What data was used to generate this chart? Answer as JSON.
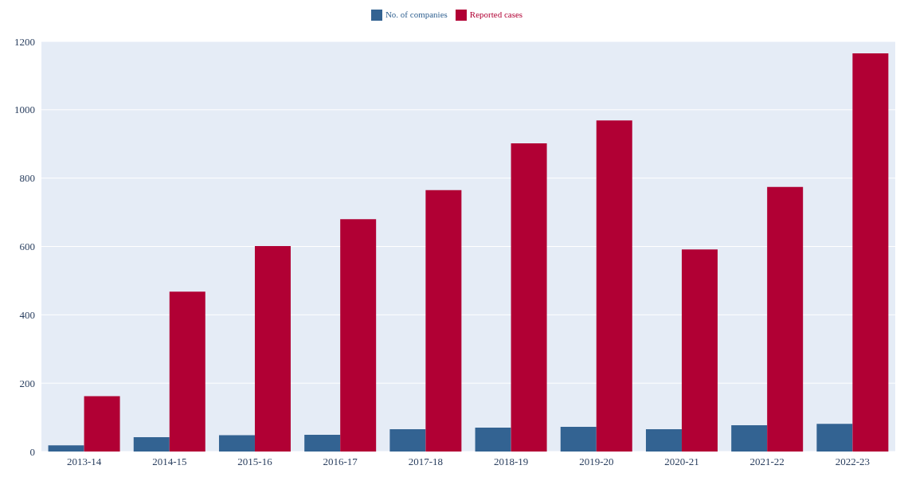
{
  "chart_data": {
    "type": "bar",
    "categories": [
      "2013-14",
      "2014-15",
      "2015-16",
      "2016-17",
      "2017-18",
      "2018-19",
      "2019-20",
      "2020-21",
      "2021-22",
      "2022-23"
    ],
    "series": [
      {
        "name": "No. of companies",
        "color": "#336392",
        "values": [
          18,
          42,
          48,
          49,
          65,
          70,
          72,
          65,
          77,
          81
        ]
      },
      {
        "name": "Reported cases",
        "color": "#b10034",
        "values": [
          162,
          468,
          601,
          680,
          765,
          902,
          969,
          591,
          774,
          1165
        ]
      }
    ],
    "ylim": [
      0,
      1200
    ],
    "yticks": [
      0,
      200,
      400,
      600,
      800,
      1000,
      1200
    ],
    "grid": "y",
    "legend": "top"
  }
}
